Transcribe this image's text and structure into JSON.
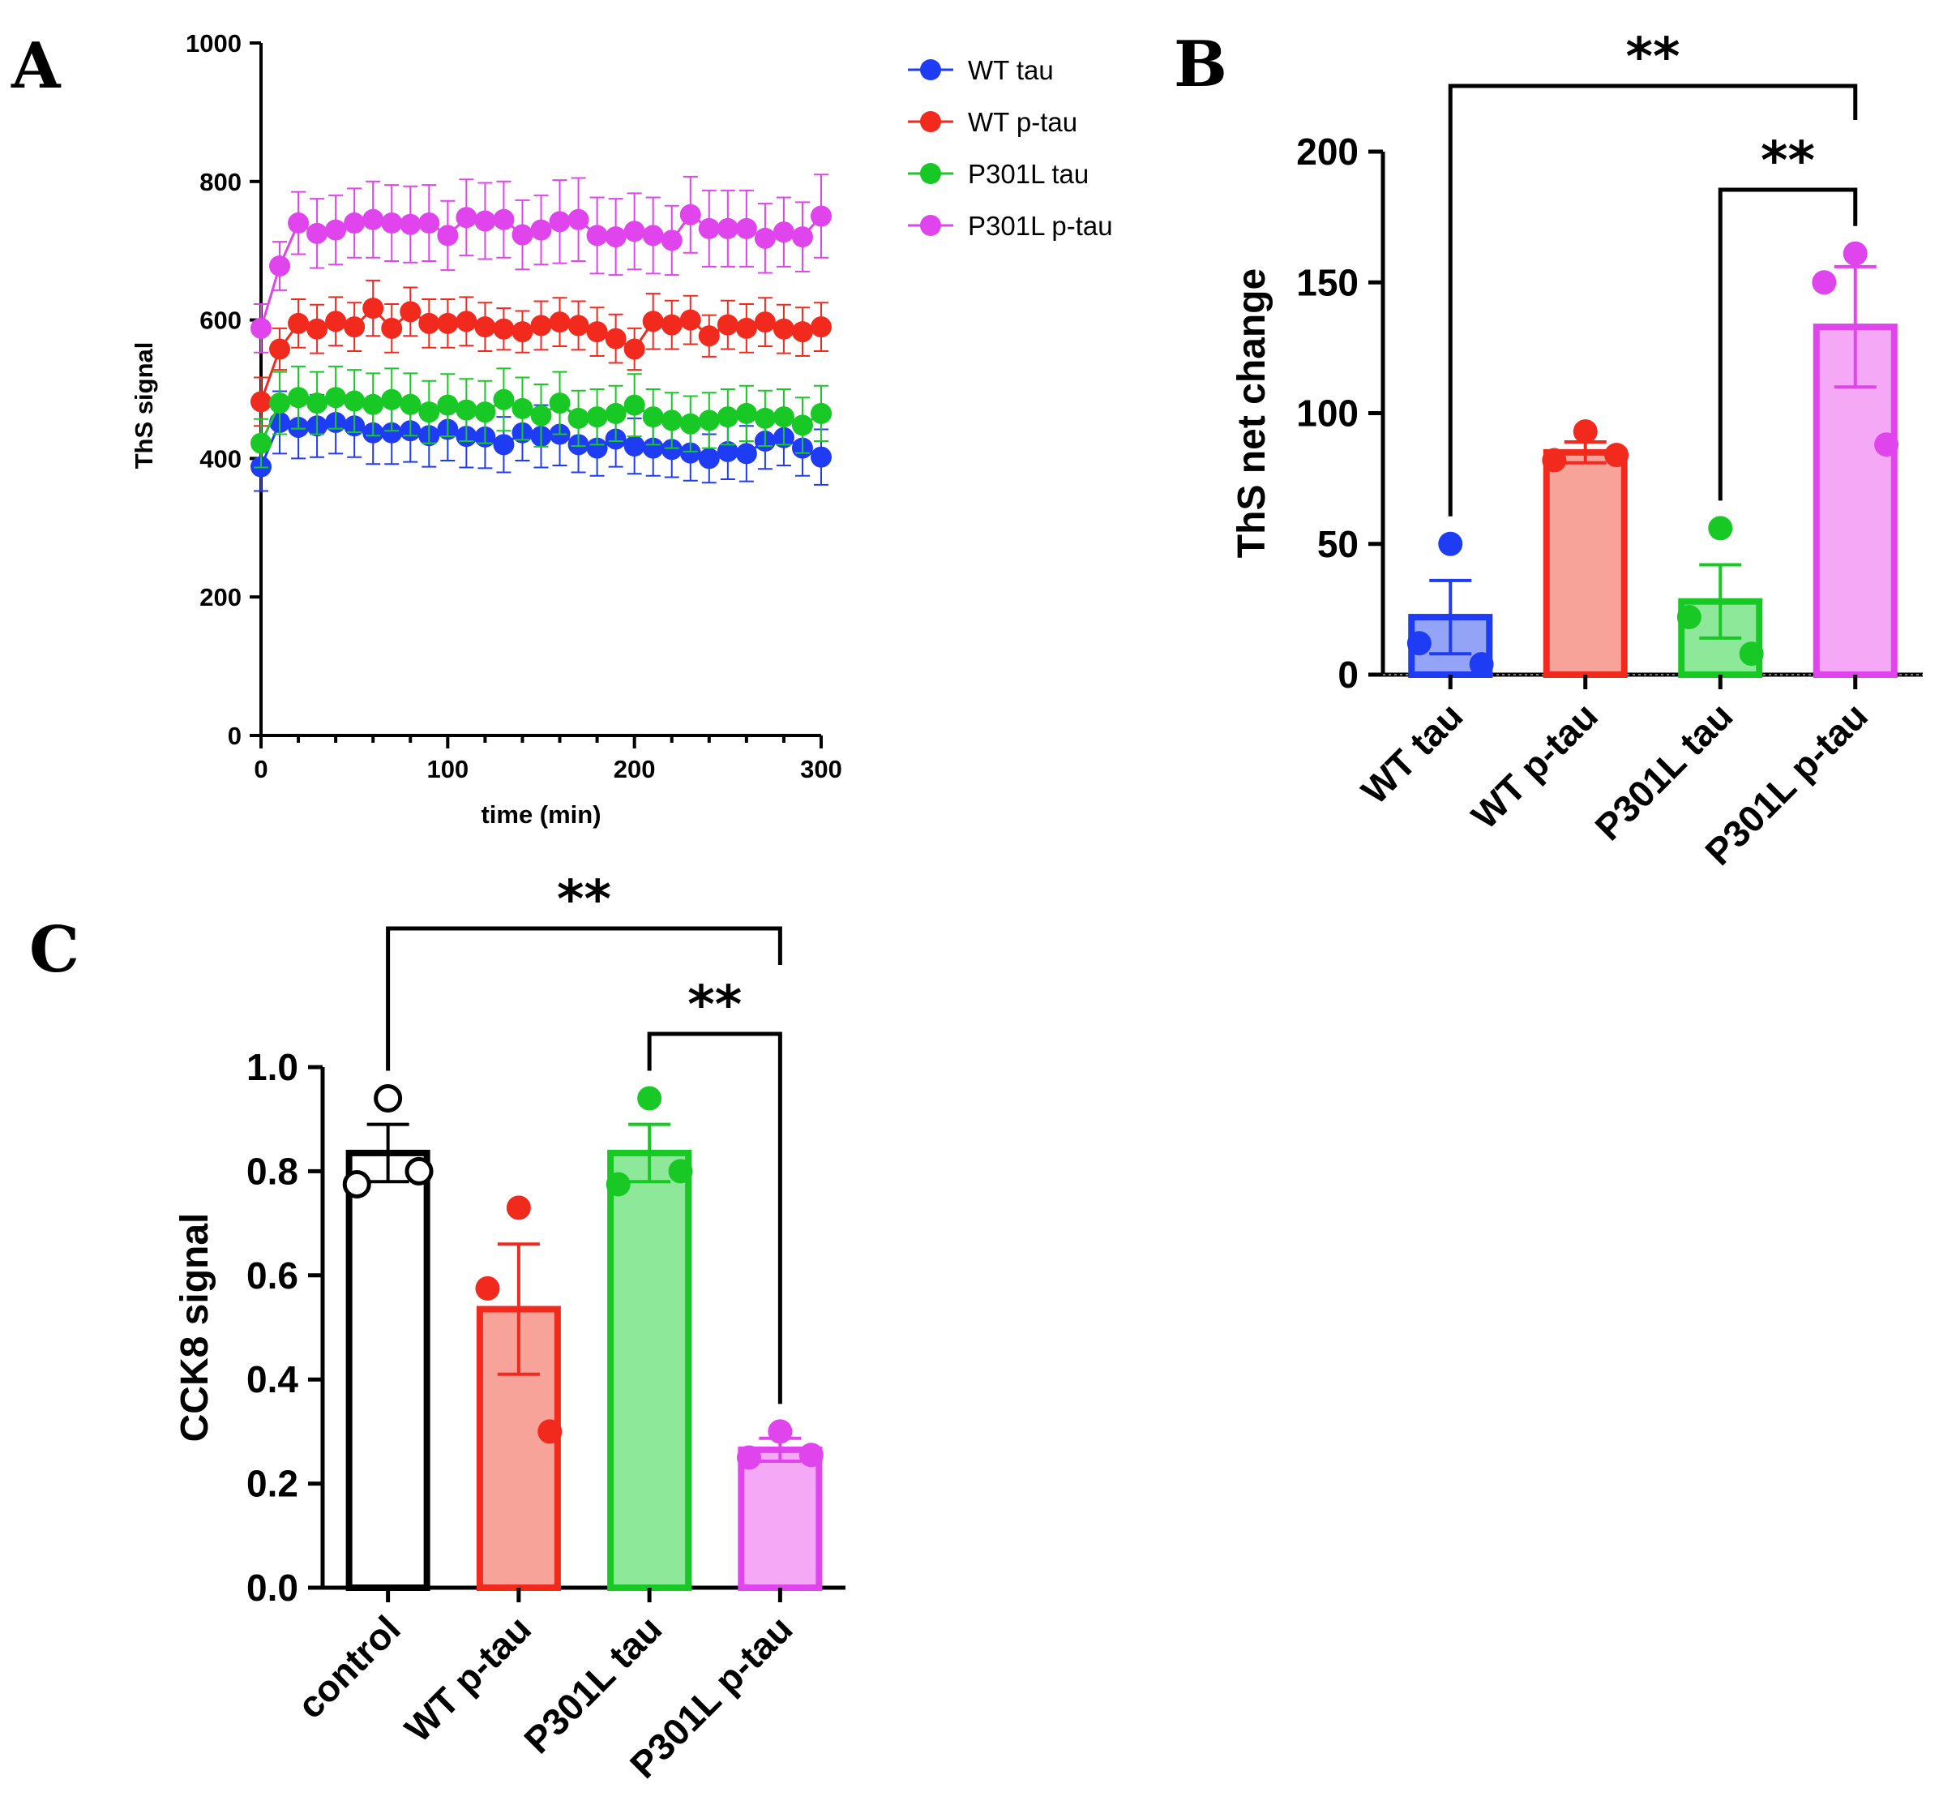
{
  "chart_data": [
    {
      "panel": "A",
      "type": "line",
      "title": "",
      "xlabel": "time (min)",
      "ylabel": "ThS signal",
      "xlim": [
        0,
        300
      ],
      "ylim": [
        0,
        1000
      ],
      "xticks": [
        0,
        100,
        200,
        300
      ],
      "yticks": [
        0,
        200,
        400,
        600,
        800,
        1000
      ],
      "legend_position": "top-right outside plot",
      "x": [
        0,
        10,
        20,
        30,
        40,
        50,
        60,
        70,
        80,
        90,
        100,
        110,
        120,
        130,
        140,
        150,
        160,
        170,
        180,
        190,
        200,
        210,
        220,
        230,
        240,
        250,
        260,
        270,
        280,
        290,
        300
      ],
      "series": [
        {
          "name": "WT tau",
          "color": "#1f3cf5",
          "values": [
            388,
            452,
            445,
            447,
            452,
            447,
            437,
            437,
            440,
            433,
            442,
            432,
            431,
            420,
            437,
            432,
            435,
            420,
            415,
            428,
            418,
            415,
            413,
            408,
            400,
            410,
            407,
            425,
            430,
            415,
            402
          ],
          "errors": [
            35,
            45,
            45,
            45,
            45,
            45,
            45,
            45,
            45,
            45,
            45,
            45,
            45,
            40,
            40,
            45,
            45,
            40,
            40,
            40,
            40,
            40,
            40,
            40,
            35,
            40,
            40,
            40,
            40,
            40,
            40
          ]
        },
        {
          "name": "WT p-tau",
          "color": "#f22a1e",
          "values": [
            482,
            558,
            595,
            587,
            598,
            590,
            617,
            588,
            612,
            595,
            595,
            598,
            590,
            587,
            583,
            592,
            597,
            592,
            583,
            573,
            558,
            598,
            593,
            600,
            577,
            593,
            588,
            597,
            587,
            583,
            590
          ],
          "errors": [
            35,
            30,
            35,
            35,
            35,
            35,
            40,
            35,
            35,
            35,
            35,
            35,
            35,
            30,
            30,
            35,
            35,
            35,
            35,
            35,
            30,
            40,
            35,
            35,
            30,
            35,
            35,
            35,
            35,
            35,
            35
          ]
        },
        {
          "name": "P301L tau",
          "color": "#18c825",
          "values": [
            422,
            480,
            488,
            480,
            488,
            483,
            478,
            485,
            478,
            467,
            477,
            470,
            467,
            485,
            472,
            462,
            480,
            458,
            460,
            465,
            477,
            460,
            455,
            450,
            455,
            460,
            465,
            458,
            460,
            448,
            465
          ],
          "errors": [
            35,
            45,
            45,
            45,
            45,
            45,
            45,
            45,
            45,
            45,
            45,
            45,
            45,
            45,
            45,
            45,
            45,
            40,
            40,
            40,
            45,
            40,
            40,
            40,
            40,
            40,
            40,
            40,
            40,
            40,
            40
          ]
        },
        {
          "name": "P301L p-tau",
          "color": "#e044ec",
          "values": [
            588,
            678,
            740,
            725,
            730,
            740,
            745,
            740,
            738,
            740,
            722,
            748,
            743,
            745,
            723,
            730,
            742,
            745,
            722,
            720,
            728,
            722,
            715,
            752,
            732,
            732,
            732,
            718,
            727,
            720,
            750
          ],
          "errors": [
            35,
            35,
            45,
            50,
            50,
            50,
            55,
            55,
            55,
            55,
            50,
            55,
            55,
            55,
            50,
            50,
            60,
            60,
            55,
            55,
            55,
            55,
            50,
            55,
            55,
            55,
            55,
            50,
            50,
            50,
            60
          ]
        }
      ],
      "legend": [
        "WT tau",
        "WT p-tau",
        "P301L tau",
        "P301L p-tau"
      ]
    },
    {
      "panel": "B",
      "type": "bar",
      "title": "",
      "xlabel": "",
      "ylabel": "ThS net change",
      "ylim": [
        0,
        200
      ],
      "yticks": [
        0,
        50,
        100,
        150,
        200
      ],
      "categories": [
        "WT tau",
        "WT p-tau",
        "P301L tau",
        "P301L p-tau"
      ],
      "values": [
        22,
        85,
        28,
        133
      ],
      "sem": [
        14,
        4,
        14,
        23
      ],
      "points": [
        [
          50,
          12,
          4
        ],
        [
          93,
          82,
          84
        ],
        [
          56,
          22,
          8
        ],
        [
          161,
          150,
          88
        ]
      ],
      "colors": [
        "#1f3cf5",
        "#f22a1e",
        "#18c825",
        "#e044ec"
      ],
      "fills": [
        "#93a4f7",
        "#f7a39a",
        "#8ee89a",
        "#f4a8f6"
      ],
      "significance": [
        {
          "from": "WT tau",
          "to": "P301L p-tau",
          "label": "**"
        },
        {
          "from": "P301L tau",
          "to": "P301L p-tau",
          "label": "**"
        }
      ]
    },
    {
      "panel": "C",
      "type": "bar",
      "title": "",
      "xlabel": "",
      "ylabel": "CCK8 signal",
      "ylim": [
        0,
        1.0
      ],
      "yticks": [
        "0.0",
        "0.2",
        "0.4",
        "0.6",
        "0.8",
        "1.0"
      ],
      "categories": [
        "control",
        "WT p-tau",
        "P301L tau",
        "P301L p-tau"
      ],
      "values": [
        0.835,
        0.535,
        0.835,
        0.265
      ],
      "sem": [
        0.055,
        0.125,
        0.055,
        0.022
      ],
      "points": [
        [
          0.94,
          0.775,
          0.8
        ],
        [
          0.73,
          0.575,
          0.3
        ],
        [
          0.94,
          0.775,
          0.8
        ],
        [
          0.3,
          0.25,
          0.255
        ]
      ],
      "colors": [
        "#000000",
        "#f22a1e",
        "#18c825",
        "#e044ec"
      ],
      "fills": [
        "#ffffff",
        "#f7a39a",
        "#8ee89a",
        "#f4a8f6"
      ],
      "point_fill": [
        "#ffffff",
        "#f22a1e",
        "#18c825",
        "#e044ec"
      ],
      "significance": [
        {
          "from": "control",
          "to": "P301L p-tau",
          "label": "**"
        },
        {
          "from": "P301L tau",
          "to": "P301L p-tau",
          "label": "**"
        }
      ]
    }
  ],
  "panel_labels": [
    "A",
    "B",
    "C"
  ]
}
